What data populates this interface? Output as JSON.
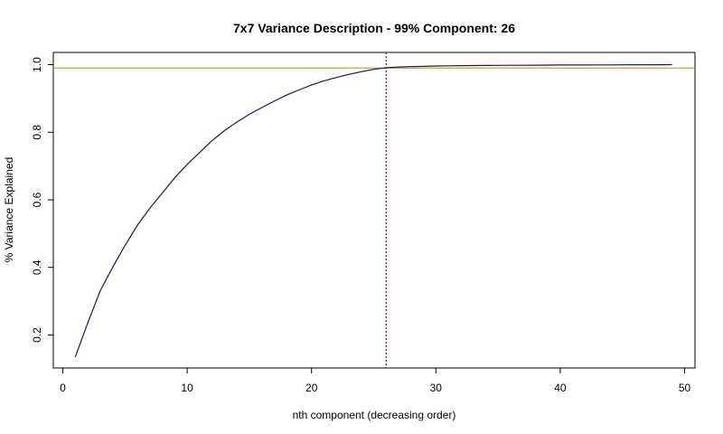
{
  "chart_data": {
    "type": "line",
    "title": "7x7 Variance Description - 99% Component: 26",
    "xlabel": "nth component (decreasing order)",
    "ylabel": "% Variance Explained",
    "xlim": [
      0,
      50
    ],
    "ylim": [
      0.1,
      1.02
    ],
    "x_ticks": [
      0,
      10,
      20,
      30,
      40,
      50
    ],
    "y_ticks": [
      0.2,
      0.4,
      0.6,
      0.8,
      1.0
    ],
    "x_tick_labels": [
      "0",
      "10",
      "20",
      "30",
      "40",
      "50"
    ],
    "y_tick_labels": [
      "0.2",
      "0.4",
      "0.6",
      "0.8",
      "1.0"
    ],
    "grid": false,
    "series": [
      {
        "color": "#1a1a4e",
        "x": [
          1,
          2,
          3,
          4,
          5,
          6,
          7,
          8,
          9,
          10,
          11,
          12,
          13,
          14,
          15,
          16,
          17,
          18,
          19,
          20,
          21,
          22,
          23,
          24,
          25,
          26,
          27,
          28,
          29,
          30,
          31,
          32,
          33,
          34,
          35,
          36,
          37,
          38,
          39,
          40,
          41,
          42,
          43,
          44,
          45,
          46,
          47,
          48,
          49
        ],
        "y": [
          0.135,
          0.235,
          0.33,
          0.4,
          0.465,
          0.525,
          0.575,
          0.62,
          0.665,
          0.705,
          0.74,
          0.775,
          0.805,
          0.83,
          0.853,
          0.873,
          0.892,
          0.91,
          0.925,
          0.94,
          0.952,
          0.962,
          0.971,
          0.979,
          0.986,
          0.991,
          0.993,
          0.994,
          0.995,
          0.996,
          0.9965,
          0.997,
          0.9973,
          0.9976,
          0.9979,
          0.998,
          0.9982,
          0.9984,
          0.9986,
          0.9988,
          0.9989,
          0.999,
          0.9992,
          0.9993,
          0.9994,
          0.9996,
          0.9997,
          0.9998,
          1.0
        ]
      }
    ],
    "reference_lines": [
      {
        "orientation": "horizontal",
        "value": 0.99,
        "color": "#c8a040",
        "style": "solid"
      },
      {
        "orientation": "vertical",
        "value": 26,
        "color": "#8b1a1a",
        "style": "dotted"
      }
    ]
  }
}
